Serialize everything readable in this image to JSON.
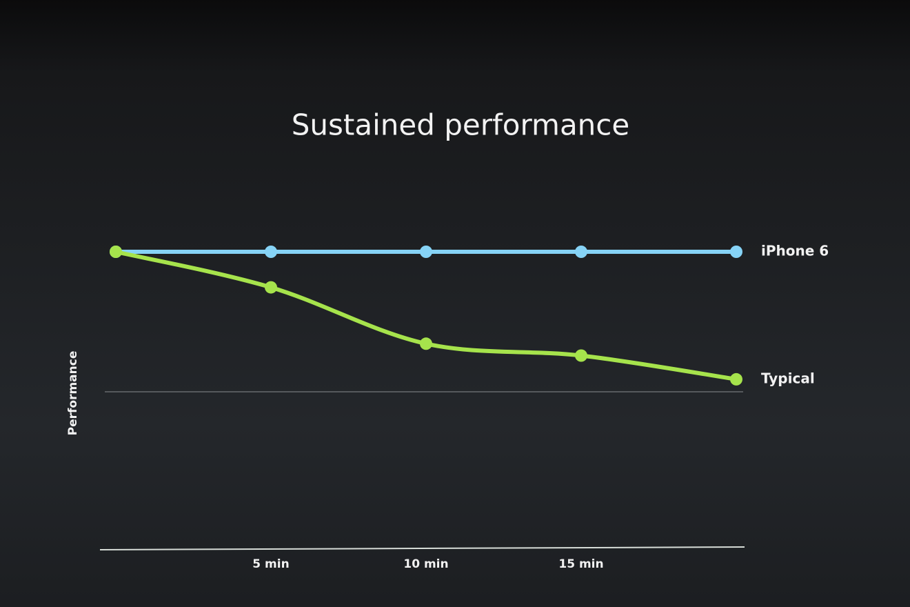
{
  "chart_data": {
    "type": "line",
    "title": "Sustained performance",
    "y_label": "Performance",
    "categories": [
      null,
      "5 min",
      "10 min",
      "15 min",
      null
    ],
    "series": [
      {
        "name": "iPhone 6",
        "color": "#86d3f6",
        "values": [
          100,
          100,
          100,
          100,
          100
        ]
      },
      {
        "name": "Typical",
        "color": "#a6e34c",
        "values": [
          100,
          88,
          69,
          65,
          57
        ]
      }
    ],
    "ylim": [
      0,
      100
    ]
  }
}
